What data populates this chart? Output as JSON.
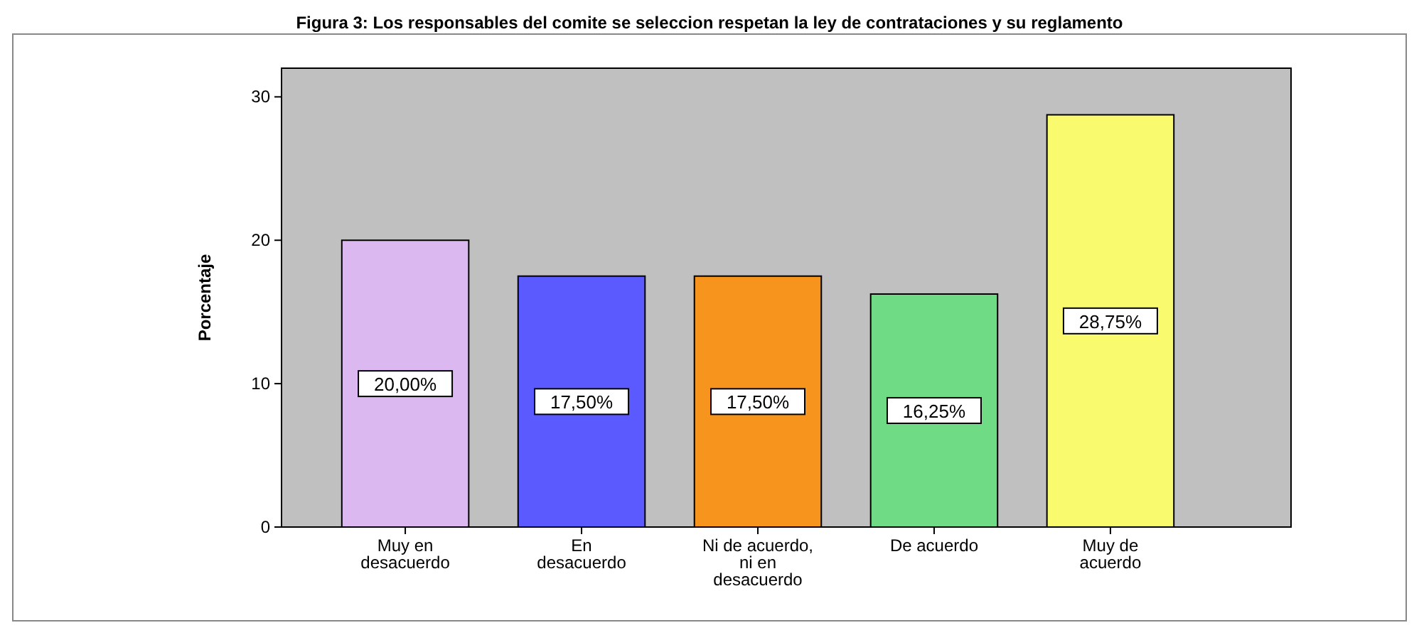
{
  "chart_data": {
    "type": "bar",
    "title": "Figura 3: Los responsables del comite se seleccion respetan la ley de contrataciones y su reglamento",
    "ylabel": "Porcentaje",
    "categories": [
      "Muy en\ndesacuerdo",
      "En\ndesacuerdo",
      "Ni de acuerdo,\nni en\ndesacuerdo",
      "De acuerdo",
      "Muy de\nacuerdo"
    ],
    "values": [
      20.0,
      17.5,
      17.5,
      16.25,
      28.75
    ],
    "colors": [
      "#dcb8f0",
      "#5a5aff",
      "#f7941d",
      "#6fdb84",
      "#fafa6e"
    ],
    "value_labels": [
      "20,00%",
      "17,50%",
      "17,50%",
      "16,25%",
      "28,75%"
    ],
    "ylim": [
      0,
      32
    ],
    "yticks": [
      0,
      10,
      20,
      30
    ],
    "grid": false
  }
}
